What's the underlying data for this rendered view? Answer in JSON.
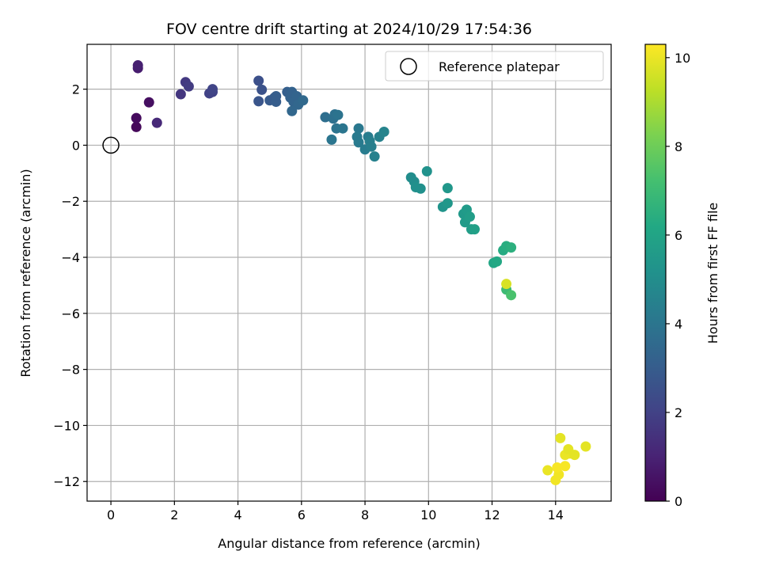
{
  "chart_data": {
    "type": "scatter",
    "title": "FOV centre drift starting at 2024/10/29 17:54:36",
    "xlabel": "Angular distance from reference (arcmin)",
    "ylabel": "Rotation from reference (arcmin)",
    "colorbar_label": "Hours from first FF file",
    "colormap": "viridis",
    "xlim": [
      -0.75,
      15.75
    ],
    "ylim": [
      -12.7,
      3.6
    ],
    "clim": [
      0,
      10.3
    ],
    "xticks": [
      0,
      2,
      4,
      6,
      8,
      10,
      12,
      14
    ],
    "xtick_labels": [
      "0",
      "2",
      "4",
      "6",
      "8",
      "10",
      "12",
      "14"
    ],
    "yticks": [
      2,
      0,
      -2,
      -4,
      -6,
      -8,
      -10,
      -12
    ],
    "ytick_labels": [
      "2",
      "0",
      "−2",
      "−4",
      "−6",
      "−8",
      "−10",
      "−12"
    ],
    "cticks": [
      0,
      2,
      4,
      6,
      8,
      10
    ],
    "ctick_labels": [
      "0",
      "2",
      "4",
      "6",
      "8",
      "10"
    ],
    "grid": true,
    "legend": {
      "position": "top-right",
      "label": "Reference platepar"
    },
    "reference_point": {
      "x": 0,
      "y": 0
    },
    "series": [
      {
        "points": [
          {
            "x": 0.8,
            "y": 0.65,
            "t": 0.2
          },
          {
            "x": 0.8,
            "y": 0.97,
            "t": 0.3
          },
          {
            "x": 1.2,
            "y": 1.53,
            "t": 0.4
          },
          {
            "x": 0.85,
            "y": 2.75,
            "t": 0.8
          },
          {
            "x": 0.85,
            "y": 2.85,
            "t": 0.9
          },
          {
            "x": 1.45,
            "y": 0.8,
            "t": 1.2
          },
          {
            "x": 2.2,
            "y": 1.82,
            "t": 1.6
          },
          {
            "x": 2.35,
            "y": 2.25,
            "t": 1.7
          },
          {
            "x": 2.45,
            "y": 2.1,
            "t": 1.8
          },
          {
            "x": 3.1,
            "y": 1.85,
            "t": 2.0
          },
          {
            "x": 3.2,
            "y": 1.9,
            "t": 2.0
          },
          {
            "x": 3.2,
            "y": 2.0,
            "t": 2.1
          },
          {
            "x": 4.65,
            "y": 2.3,
            "t": 2.5
          },
          {
            "x": 4.75,
            "y": 1.98,
            "t": 2.6
          },
          {
            "x": 4.65,
            "y": 1.57,
            "t": 2.7
          },
          {
            "x": 5.0,
            "y": 1.6,
            "t": 2.9
          },
          {
            "x": 5.15,
            "y": 1.7,
            "t": 2.9
          },
          {
            "x": 5.2,
            "y": 1.55,
            "t": 3.0
          },
          {
            "x": 5.2,
            "y": 1.75,
            "t": 3.0
          },
          {
            "x": 5.55,
            "y": 1.9,
            "t": 3.1
          },
          {
            "x": 5.7,
            "y": 1.9,
            "t": 3.2
          },
          {
            "x": 5.65,
            "y": 1.7,
            "t": 3.2
          },
          {
            "x": 5.75,
            "y": 1.55,
            "t": 3.3
          },
          {
            "x": 5.85,
            "y": 1.75,
            "t": 3.3
          },
          {
            "x": 5.9,
            "y": 1.45,
            "t": 3.4
          },
          {
            "x": 5.7,
            "y": 1.22,
            "t": 3.4
          },
          {
            "x": 6.05,
            "y": 1.6,
            "t": 3.5
          },
          {
            "x": 6.75,
            "y": 1.0,
            "t": 3.7
          },
          {
            "x": 7.0,
            "y": 0.95,
            "t": 3.8
          },
          {
            "x": 7.05,
            "y": 1.1,
            "t": 3.8
          },
          {
            "x": 7.15,
            "y": 1.08,
            "t": 3.9
          },
          {
            "x": 7.1,
            "y": 0.6,
            "t": 3.9
          },
          {
            "x": 7.3,
            "y": 0.6,
            "t": 4.0
          },
          {
            "x": 6.95,
            "y": 0.2,
            "t": 4.0
          },
          {
            "x": 7.8,
            "y": 0.6,
            "t": 4.1
          },
          {
            "x": 7.75,
            "y": 0.3,
            "t": 4.2
          },
          {
            "x": 7.8,
            "y": 0.1,
            "t": 4.2
          },
          {
            "x": 8.0,
            "y": -0.15,
            "t": 4.3
          },
          {
            "x": 8.1,
            "y": 0.3,
            "t": 4.3
          },
          {
            "x": 8.15,
            "y": 0.15,
            "t": 4.4
          },
          {
            "x": 8.2,
            "y": -0.05,
            "t": 4.4
          },
          {
            "x": 8.45,
            "y": 0.3,
            "t": 4.5
          },
          {
            "x": 8.3,
            "y": -0.4,
            "t": 4.5
          },
          {
            "x": 8.6,
            "y": 0.48,
            "t": 4.6
          },
          {
            "x": 9.45,
            "y": -1.15,
            "t": 5.0
          },
          {
            "x": 9.55,
            "y": -1.3,
            "t": 5.0
          },
          {
            "x": 9.6,
            "y": -1.5,
            "t": 5.1
          },
          {
            "x": 9.75,
            "y": -1.55,
            "t": 5.1
          },
          {
            "x": 9.95,
            "y": -0.93,
            "t": 5.2
          },
          {
            "x": 10.45,
            "y": -2.2,
            "t": 5.3
          },
          {
            "x": 10.6,
            "y": -2.07,
            "t": 5.4
          },
          {
            "x": 10.6,
            "y": -1.53,
            "t": 5.4
          },
          {
            "x": 11.1,
            "y": -2.45,
            "t": 5.5
          },
          {
            "x": 11.15,
            "y": -2.75,
            "t": 5.6
          },
          {
            "x": 11.2,
            "y": -2.3,
            "t": 5.6
          },
          {
            "x": 11.3,
            "y": -2.55,
            "t": 5.7
          },
          {
            "x": 11.35,
            "y": -3.0,
            "t": 5.7
          },
          {
            "x": 11.45,
            "y": -3.0,
            "t": 5.8
          },
          {
            "x": 12.05,
            "y": -4.2,
            "t": 6.1
          },
          {
            "x": 12.15,
            "y": -4.15,
            "t": 6.2
          },
          {
            "x": 12.35,
            "y": -3.75,
            "t": 6.3
          },
          {
            "x": 12.45,
            "y": -3.6,
            "t": 6.4
          },
          {
            "x": 12.6,
            "y": -3.65,
            "t": 6.5
          },
          {
            "x": 12.45,
            "y": -5.15,
            "t": 7.0
          },
          {
            "x": 12.6,
            "y": -5.35,
            "t": 7.3
          },
          {
            "x": 12.45,
            "y": -4.95,
            "t": 9.7
          },
          {
            "x": 13.75,
            "y": -11.6,
            "t": 10.0
          },
          {
            "x": 14.0,
            "y": -11.95,
            "t": 10.1
          },
          {
            "x": 14.1,
            "y": -11.75,
            "t": 10.1
          },
          {
            "x": 14.05,
            "y": -11.5,
            "t": 10.2
          },
          {
            "x": 14.3,
            "y": -11.45,
            "t": 10.2
          },
          {
            "x": 14.15,
            "y": -10.45,
            "t": 9.9
          },
          {
            "x": 14.3,
            "y": -11.05,
            "t": 10.0
          },
          {
            "x": 14.45,
            "y": -11.0,
            "t": 10.0
          },
          {
            "x": 14.4,
            "y": -10.85,
            "t": 9.9
          },
          {
            "x": 14.6,
            "y": -11.05,
            "t": 9.9
          },
          {
            "x": 14.95,
            "y": -10.75,
            "t": 9.9
          }
        ]
      }
    ]
  }
}
